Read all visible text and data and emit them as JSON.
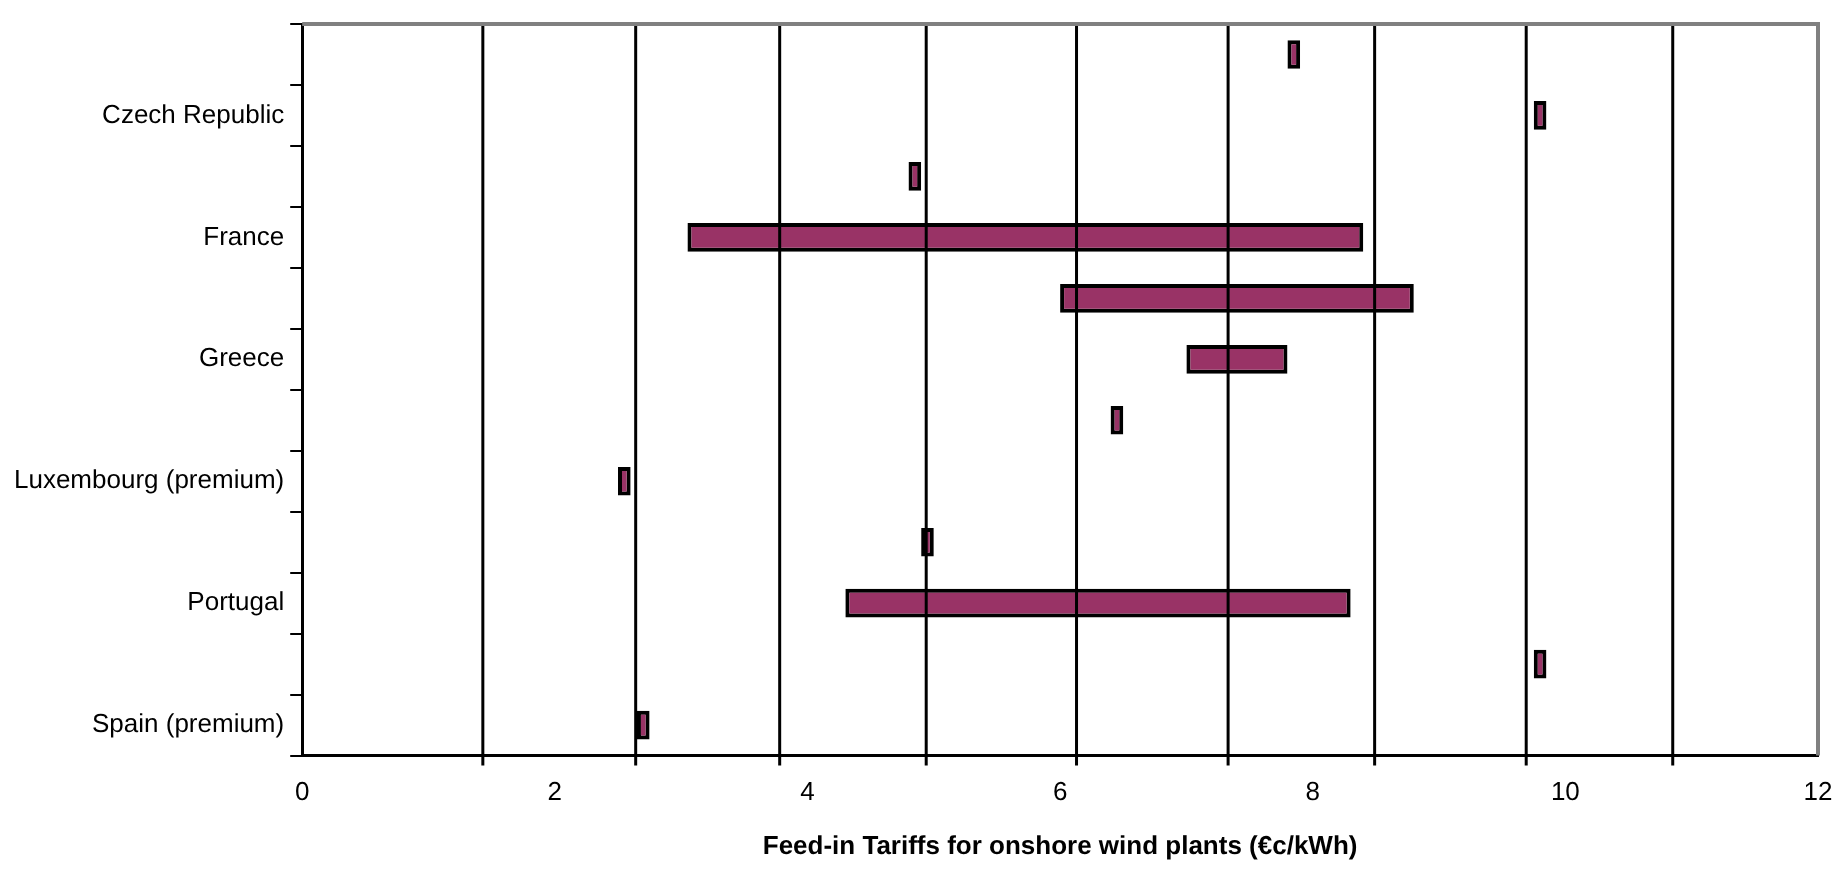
{
  "chart_data": {
    "type": "bar",
    "orientation": "horizontal",
    "xlabel": "Feed-in Tariffs for onshore wind plants (€c/kWh)",
    "categories": [
      null,
      "Czech Republic",
      null,
      "France",
      null,
      "Greece",
      null,
      "Luxembourg (premium)",
      null,
      "Portugal",
      null,
      "Spain (premium)"
    ],
    "base": [
      7.8,
      9.75,
      4.8,
      3.05,
      6.0,
      7.0,
      6.4,
      2.5,
      4.9,
      4.3,
      9.75,
      2.65
    ],
    "values": [
      0.1,
      0.1,
      0.1,
      5.35,
      2.8,
      0.8,
      0.1,
      0.1,
      0.1,
      4.0,
      0.1,
      0.1
    ],
    "color": "#993366",
    "xlim": [
      0,
      12
    ],
    "xticks": [
      0,
      2,
      4,
      6,
      8,
      10,
      12
    ],
    "ref_lines": [
      {
        "axis": "x",
        "value": 1.43,
        "color": "#000000"
      },
      {
        "axis": "x",
        "value": 2.64,
        "color": "#000000"
      },
      {
        "axis": "x",
        "value": 3.78,
        "color": "#000000"
      },
      {
        "axis": "x",
        "value": 4.94,
        "color": "#000000"
      },
      {
        "axis": "x",
        "value": 6.13,
        "color": "#000000"
      },
      {
        "axis": "x",
        "value": 7.33,
        "color": "#000000"
      },
      {
        "axis": "x",
        "value": 8.49,
        "color": "#000000"
      },
      {
        "axis": "x",
        "value": 9.69,
        "color": "#000000"
      },
      {
        "axis": "x",
        "value": 10.85,
        "color": "#000000"
      }
    ],
    "legend": false
  }
}
